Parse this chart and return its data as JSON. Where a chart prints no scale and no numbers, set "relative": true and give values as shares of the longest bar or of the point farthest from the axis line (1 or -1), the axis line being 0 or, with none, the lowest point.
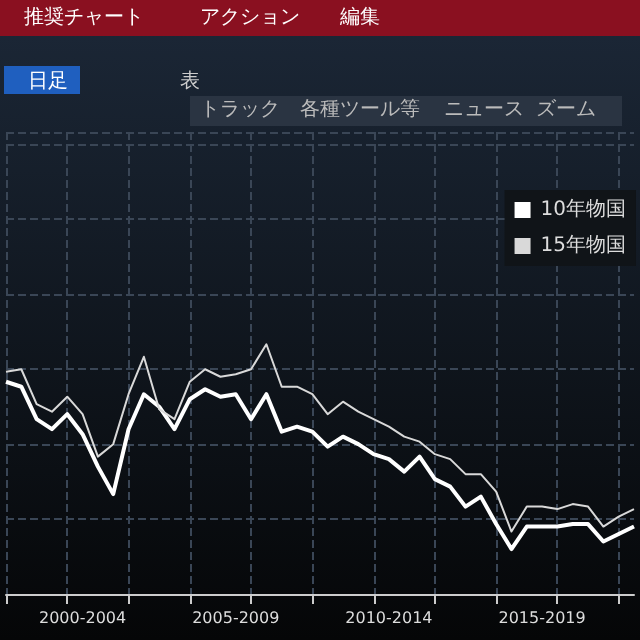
{
  "chart_data": {
    "type": "line",
    "relative": true,
    "grid": true,
    "legend": "right",
    "annotations": [
      "推奨チャート",
      "アクション",
      "編集",
      "日足",
      "表",
      "トラック",
      "各種ツール等",
      "ニュース",
      "ズーム"
    ],
    "categories": [
      null,
      null,
      null,
      null,
      null,
      "2000-2004",
      null,
      null,
      null,
      null,
      null,
      null,
      null,
      null,
      null,
      "2005-2009",
      null,
      null,
      null,
      null,
      null,
      null,
      null,
      null,
      null,
      "2010-2014",
      null,
      null,
      null,
      null,
      null,
      null,
      null,
      null,
      null,
      "2015-2019",
      null,
      null,
      null,
      null,
      null,
      null
    ],
    "series": [
      {
        "name": "10年物国",
        "color": "#ffffff",
        "values": [
          0.85,
          0.83,
          0.7,
          0.66,
          0.72,
          0.64,
          0.51,
          0.4,
          0.66,
          0.8,
          0.75,
          0.66,
          0.78,
          0.82,
          0.79,
          0.8,
          0.7,
          0.8,
          0.65,
          0.67,
          0.65,
          0.59,
          0.63,
          0.6,
          0.56,
          0.54,
          0.49,
          0.55,
          0.46,
          0.43,
          0.35,
          0.39,
          0.28,
          0.18,
          0.27,
          0.27,
          0.27,
          0.28,
          0.28,
          0.21,
          0.24,
          0.27
        ]
      },
      {
        "name": "15年物国",
        "color": "#d9d9d9",
        "values": [
          0.89,
          0.9,
          0.76,
          0.73,
          0.79,
          0.72,
          0.55,
          0.6,
          0.8,
          0.95,
          0.74,
          0.7,
          0.85,
          0.9,
          0.87,
          0.88,
          0.9,
          1.0,
          0.83,
          0.83,
          0.8,
          0.72,
          0.77,
          0.73,
          0.7,
          0.67,
          0.63,
          0.61,
          0.56,
          0.54,
          0.48,
          0.48,
          0.41,
          0.25,
          0.35,
          0.35,
          0.34,
          0.36,
          0.35,
          0.27,
          0.31,
          0.34
        ]
      }
    ]
  }
}
